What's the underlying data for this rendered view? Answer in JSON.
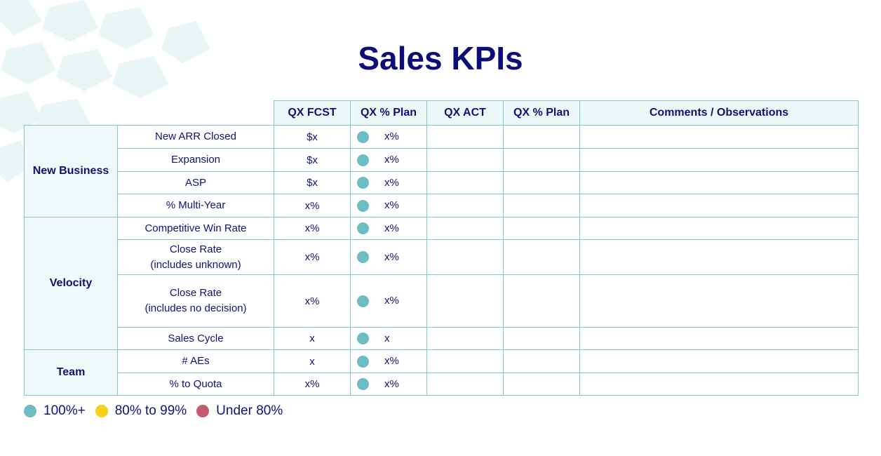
{
  "title": "Sales KPIs",
  "table": {
    "headers": [
      "QX FCST",
      "QX % Plan",
      "QX ACT",
      "QX % Plan",
      "Comments / Observations"
    ],
    "groups": [
      {
        "label": "New Business",
        "rows": [
          {
            "metric": "New ARR Closed",
            "fcst": "$x",
            "plan": "x%"
          },
          {
            "metric": "Expansion",
            "fcst": "$x",
            "plan": "x%"
          },
          {
            "metric": "ASP",
            "fcst": "$x",
            "plan": "x%"
          },
          {
            "metric": "% Multi-Year",
            "fcst": "x%",
            "plan": "x%"
          }
        ]
      },
      {
        "label": "Velocity",
        "rows": [
          {
            "metric": "Competitive Win Rate",
            "fcst": "x%",
            "plan": "x%"
          },
          {
            "metric": "Close Rate\n(includes unknown)",
            "fcst": "x%",
            "plan": "x%"
          },
          {
            "metric": "Close Rate\n(includes no decision)",
            "fcst": "x%",
            "plan": "x%"
          },
          {
            "metric": "Sales Cycle",
            "fcst": "x",
            "plan": "x"
          }
        ]
      },
      {
        "label": "Team",
        "rows": [
          {
            "metric": "# AEs",
            "fcst": "x",
            "plan": "x%"
          },
          {
            "metric": "% to Quota",
            "fcst": "x%",
            "plan": "x%"
          }
        ]
      }
    ]
  },
  "legend": [
    {
      "label": "100%+",
      "color": "#6cbcc4"
    },
    {
      "label": "80% to 99%",
      "color": "#f7d117"
    },
    {
      "label": "Under 80%",
      "color": "#c55a6e"
    }
  ]
}
